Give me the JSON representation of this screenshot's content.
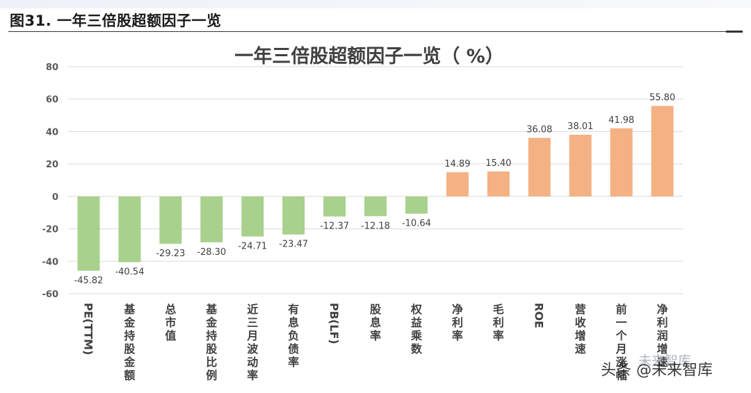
{
  "figure_caption": "图31. 一年三倍股超额因子一览",
  "watermark": {
    "text": "头条 @未来智库",
    "ghost_text": "未来智库"
  },
  "colors": {
    "negative_bar": "#a9d18e",
    "positive_bar": "#f4b183",
    "grid": "#d9d9d9",
    "axis_text": "#595959",
    "title": "#404040"
  },
  "chart_data": {
    "type": "bar",
    "title": "一年三倍股超额因子一览（ %）",
    "xlabel": "",
    "ylabel": "",
    "ylim": [
      -60,
      80
    ],
    "yticks": [
      80,
      60,
      40,
      20,
      0,
      -20,
      -40,
      -60
    ],
    "grid": true,
    "legend": "none",
    "categories": [
      "PE(TTM)",
      "基金持股金额",
      "总市值",
      "基金持股比例",
      "近三月波动率",
      "有息负债率",
      "PB(LF)",
      "股息率",
      "权益乘数",
      "净利率",
      "毛利率",
      "ROE",
      "营收增速",
      "前一个月涨幅",
      "净利润增速"
    ],
    "values": [
      -45.82,
      -40.54,
      -29.23,
      -28.3,
      -24.71,
      -23.47,
      -12.37,
      -12.18,
      -10.64,
      14.89,
      15.4,
      36.08,
      38.01,
      41.98,
      55.8
    ],
    "value_labels": [
      "-45.82",
      "-40.54",
      "-29.23",
      "-28.30",
      "-24.71",
      "-23.47",
      "-12.37",
      "-12.18",
      "-10.64",
      "14.89",
      "15.40",
      "36.08",
      "38.01",
      "41.98",
      "55.80"
    ]
  }
}
